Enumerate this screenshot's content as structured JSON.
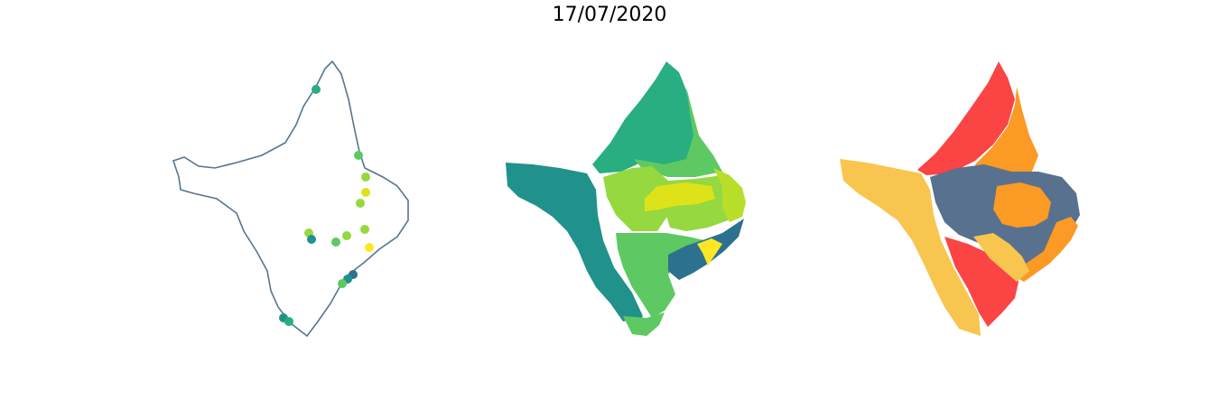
{
  "title": "17/07/2020",
  "colors": {
    "outline": "#557592",
    "viridis": [
      "#2c728e",
      "#21918c",
      "#28ae80",
      "#5ec962",
      "#95d840",
      "#b8de29",
      "#dde318",
      "#fde725"
    ],
    "classes": {
      "red": "#fb4444",
      "orange": "#fb9a24",
      "yellow": "#f8c54f",
      "slate": "#58718f"
    }
  },
  "panels": [
    {
      "kind": "station-points"
    },
    {
      "kind": "choropleth-continuous"
    },
    {
      "kind": "choropleth-classes"
    }
  ]
}
